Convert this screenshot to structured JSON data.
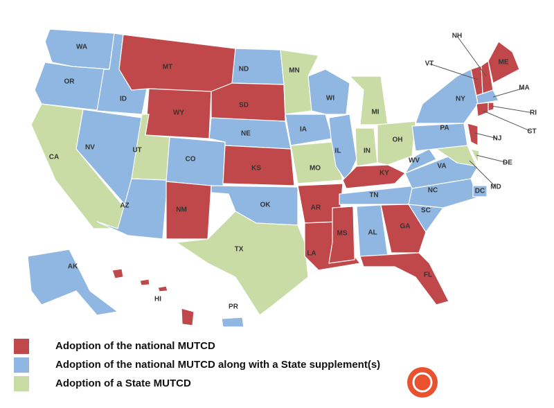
{
  "legend": [
    {
      "label": "Adoption of the national MUTCD",
      "color": "#c0484a"
    },
    {
      "label": "Adoption of the national MUTCD along with a State supplement(s)",
      "color": "#8fb7e2"
    },
    {
      "label": "Adoption of a State MUTCD",
      "color": "#c9dca6"
    }
  ],
  "states": [
    {
      "label": "WA",
      "group": 1
    },
    {
      "label": "OR",
      "group": 1
    },
    {
      "label": "CA",
      "group": 2
    },
    {
      "label": "ID",
      "group": 1
    },
    {
      "label": "NV",
      "group": 1
    },
    {
      "label": "MT",
      "group": 0
    },
    {
      "label": "WY",
      "group": 0
    },
    {
      "label": "UT",
      "group": 2
    },
    {
      "label": "AZ",
      "group": 1
    },
    {
      "label": "CO",
      "group": 1
    },
    {
      "label": "NM",
      "group": 0
    },
    {
      "label": "ND",
      "group": 1
    },
    {
      "label": "SD",
      "group": 0
    },
    {
      "label": "NE",
      "group": 1
    },
    {
      "label": "KS",
      "group": 0
    },
    {
      "label": "OK",
      "group": 1
    },
    {
      "label": "TX",
      "group": 2
    },
    {
      "label": "MN",
      "group": 2
    },
    {
      "label": "IA",
      "group": 1
    },
    {
      "label": "MO",
      "group": 2
    },
    {
      "label": "AR",
      "group": 0
    },
    {
      "label": "LA",
      "group": 0
    },
    {
      "label": "WI",
      "group": 1
    },
    {
      "label": "IL",
      "group": 1
    },
    {
      "label": "MI",
      "group": 2
    },
    {
      "label": "IN",
      "group": 2
    },
    {
      "label": "OH",
      "group": 2
    },
    {
      "label": "KY",
      "group": 0
    },
    {
      "label": "TN",
      "group": 1
    },
    {
      "label": "MS",
      "group": 0
    },
    {
      "label": "AL",
      "group": 1
    },
    {
      "label": "GA",
      "group": 0
    },
    {
      "label": "FL",
      "group": 0
    },
    {
      "label": "SC",
      "group": 1
    },
    {
      "label": "NC",
      "group": 1
    },
    {
      "label": "VA",
      "group": 1
    },
    {
      "label": "WV",
      "group": 1
    },
    {
      "label": "PA",
      "group": 1
    },
    {
      "label": "NY",
      "group": 1
    },
    {
      "label": "NJ",
      "group": 0
    },
    {
      "label": "DE",
      "group": 2
    },
    {
      "label": "MD",
      "group": 2
    },
    {
      "label": "DC",
      "group": 1
    },
    {
      "label": "VT",
      "group": 0
    },
    {
      "label": "NH",
      "group": 0
    },
    {
      "label": "ME",
      "group": 0
    },
    {
      "label": "MA",
      "group": 1
    },
    {
      "label": "CT",
      "group": 0
    },
    {
      "label": "RI",
      "group": 0
    },
    {
      "label": "AK",
      "group": 1
    },
    {
      "label": "HI",
      "group": 0
    },
    {
      "label": "PR",
      "group": 1
    }
  ]
}
